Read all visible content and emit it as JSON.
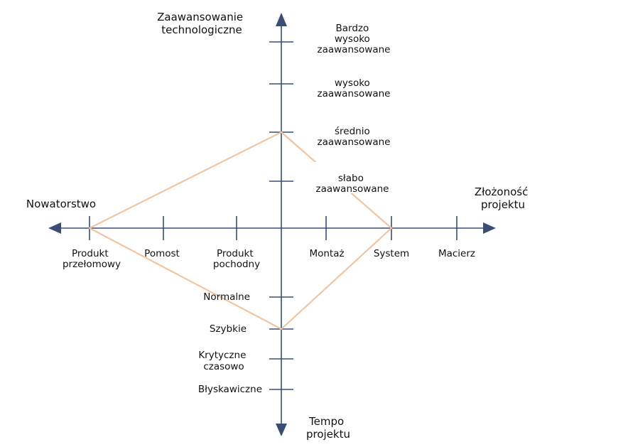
{
  "colors": {
    "axis": "#3a4d72",
    "diamond": "#f2c4a0",
    "text": "#111111"
  },
  "axes": {
    "technology_title": [
      "Zaawansowanie",
      "technologiczne"
    ],
    "complexity_title": [
      "Złożoność",
      "projektu"
    ],
    "novelty_title": "Nowatorstwo",
    "pace_title": [
      "Tempo",
      "projektu"
    ]
  },
  "technology_levels": [
    [
      "Bardzo",
      "wysoko",
      "zaawansowane"
    ],
    [
      "wysoko",
      "zaawansowane"
    ],
    [
      "średnio",
      "zaawansowane"
    ],
    [
      "słabo",
      "zaawansowane"
    ]
  ],
  "novelty_levels": [
    [
      "Produkt",
      "przełomowy"
    ],
    [
      "Pomost"
    ],
    [
      "Produkt",
      "pochodny"
    ]
  ],
  "complexity_levels": [
    [
      "Montaż"
    ],
    [
      "System"
    ],
    [
      "Macierz"
    ]
  ],
  "pace_levels": [
    [
      "Normalne"
    ],
    [
      "Szybkie"
    ],
    [
      "Krytyczne",
      "czasowo"
    ],
    [
      "Błyskawiczne"
    ]
  ],
  "diamond": {
    "technology": "średnio zaawansowane",
    "complexity": "System",
    "pace": "Szybkie",
    "novelty": "Produkt przełomowy"
  }
}
